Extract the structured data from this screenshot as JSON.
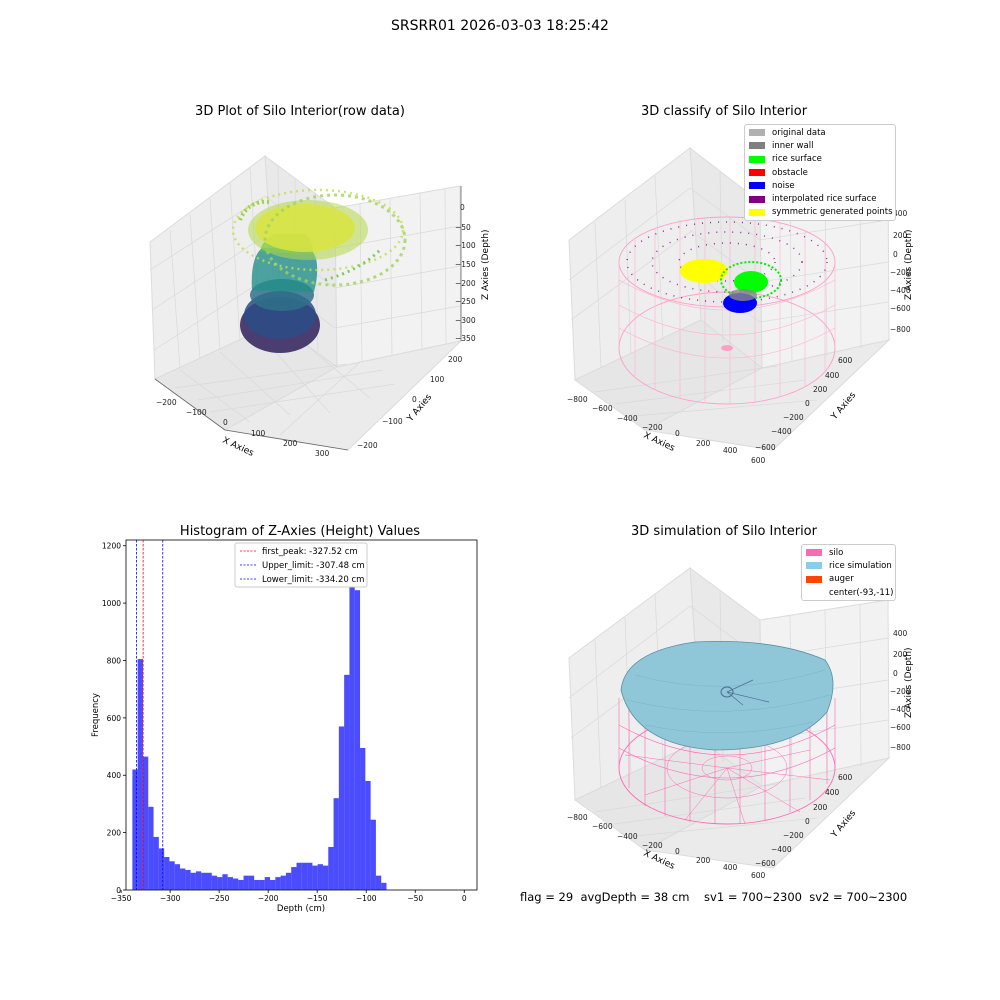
{
  "figure": {
    "suptitle": "SRSRR01 2026-03-03 18:25:42",
    "footer": "flag = 29  avgDepth = 38 cm    sv1 = 700~2300  sv2 = 700~2300"
  },
  "panels": {
    "raw": {
      "title": "3D Plot of Silo Interior(row data)",
      "xlabel": "X Axies",
      "ylabel": "Y Axies",
      "zlabel": "Z Axies (Depth)",
      "xticks": [
        "−200",
        "−100",
        "0",
        "100",
        "200",
        "300"
      ],
      "yticks": [
        "−200",
        "−100",
        "0",
        "100",
        "200"
      ],
      "zticks": [
        "0",
        "−50",
        "−100",
        "−150",
        "−200",
        "−250",
        "−300",
        "−350"
      ]
    },
    "classify": {
      "title": "3D classify of Silo Interior",
      "xlabel": "X Axies",
      "ylabel": "Y Axies",
      "zlabel": "Z Axies (Depth)",
      "xticks": [
        "−800",
        "−600",
        "−400",
        "−200",
        "0",
        "200",
        "400",
        "600"
      ],
      "yticks": [
        "600",
        "400",
        "200",
        "0",
        "−200",
        "−400",
        "−600"
      ],
      "zticks": [
        "400",
        "200",
        "0",
        "−200",
        "−400",
        "−600",
        "−800"
      ],
      "legend": [
        {
          "label": "original data",
          "color": "#b0b0b0"
        },
        {
          "label": "inner wall",
          "color": "#808080"
        },
        {
          "label": "rice surface",
          "color": "#00ff00"
        },
        {
          "label": "obstacle",
          "color": "#ff0000"
        },
        {
          "label": "noise",
          "color": "#0000ff"
        },
        {
          "label": "interpolated rice surface",
          "color": "#800080"
        },
        {
          "label": "symmetric generated points",
          "color": "#ffff00"
        }
      ]
    },
    "simulation": {
      "title": "3D simulation of Silo Interior",
      "xlabel": "X Axies",
      "ylabel": "Y Axies",
      "zlabel": "Z Axies (Depth)",
      "xticks": [
        "−800",
        "−600",
        "−400",
        "−200",
        "0",
        "200",
        "400",
        "600"
      ],
      "yticks": [
        "600",
        "400",
        "200",
        "0",
        "−200",
        "−400",
        "−600"
      ],
      "zticks": [
        "400",
        "200",
        "0",
        "−200",
        "−400",
        "−600",
        "−800"
      ],
      "legend": [
        {
          "label": "silo",
          "color": "#ff69b4"
        },
        {
          "label": "rice simulation",
          "color": "#87ceeb"
        },
        {
          "label": "auger",
          "color": "#ff4500"
        },
        {
          "label": "center(-93,-11)",
          "color": ""
        }
      ]
    }
  },
  "chart_data": [
    {
      "type": "bar",
      "title": "Histogram of Z-Axies (Height) Values",
      "xlabel": "Depth (cm)",
      "ylabel": "Frequency",
      "xlim": [
        -345,
        13
      ],
      "ylim": [
        0,
        1220
      ],
      "xticks": [
        -350,
        -300,
        -250,
        -200,
        -150,
        -100,
        -50,
        0
      ],
      "yticks": [
        0,
        200,
        400,
        600,
        800,
        1000,
        1200
      ],
      "bar_color": "#0000ff",
      "bin_edges_start": -338.5,
      "bin_width": 5.4,
      "values": [
        420,
        805,
        465,
        290,
        185,
        145,
        115,
        100,
        90,
        75,
        70,
        60,
        65,
        60,
        60,
        50,
        45,
        55,
        45,
        40,
        35,
        50,
        50,
        35,
        35,
        45,
        35,
        45,
        50,
        60,
        80,
        95,
        95,
        95,
        85,
        90,
        85,
        150,
        320,
        570,
        750,
        1155,
        1045,
        495,
        380,
        245,
        50,
        25
      ],
      "vlines": [
        {
          "label": "first_peak: -327.52 cm",
          "x": -327.52,
          "color": "#ff0000"
        },
        {
          "label": "Upper_limit: -307.48 cm",
          "x": -307.48,
          "color": "#0000ff"
        },
        {
          "label": "Lower_limit: -334.20 cm",
          "x": -334.2,
          "color": "#0000ff"
        }
      ],
      "legend_position": "upper center"
    }
  ]
}
